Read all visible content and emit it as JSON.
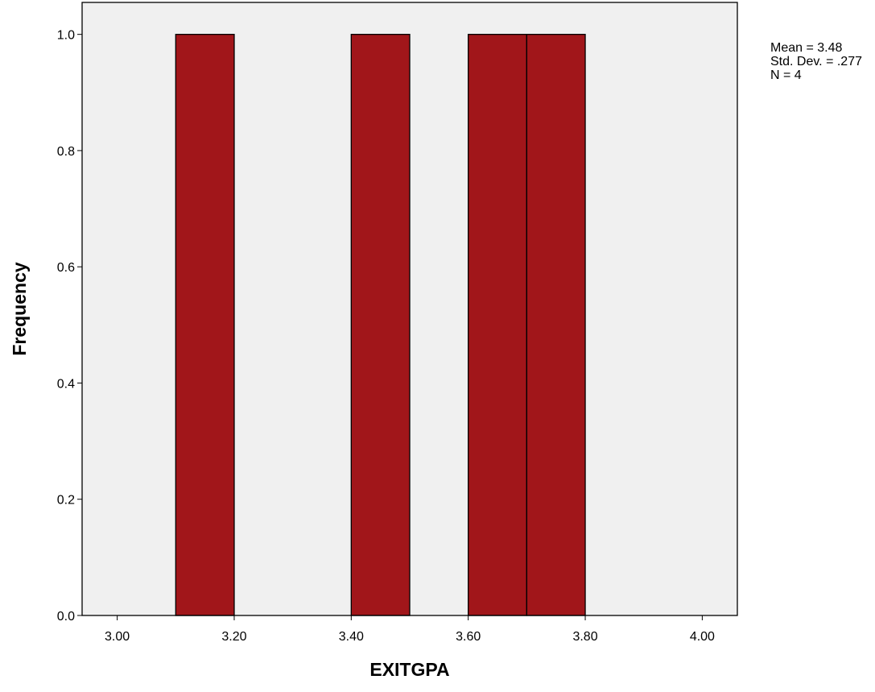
{
  "chart_data": {
    "type": "bar",
    "title": "",
    "xlabel": "EXITGPA",
    "ylabel": "Frequency",
    "xlim": [
      2.94,
      4.06
    ],
    "ylim": [
      0.0,
      1.055
    ],
    "x_ticks": [
      {
        "value": 3.0,
        "label": "3.00"
      },
      {
        "value": 3.2,
        "label": "3.20"
      },
      {
        "value": 3.4,
        "label": "3.40"
      },
      {
        "value": 3.6,
        "label": "3.60"
      },
      {
        "value": 3.8,
        "label": "3.80"
      },
      {
        "value": 4.0,
        "label": "4.00"
      }
    ],
    "y_ticks": [
      {
        "value": 0.0,
        "label": "0.0"
      },
      {
        "value": 0.2,
        "label": "0.2"
      },
      {
        "value": 0.4,
        "label": "0.4"
      },
      {
        "value": 0.6,
        "label": "0.6"
      },
      {
        "value": 0.8,
        "label": "0.8"
      },
      {
        "value": 1.0,
        "label": "1.0"
      }
    ],
    "bins": [
      {
        "start": 3.1,
        "end": 3.2,
        "frequency": 1
      },
      {
        "start": 3.4,
        "end": 3.5,
        "frequency": 1
      },
      {
        "start": 3.6,
        "end": 3.7,
        "frequency": 1
      },
      {
        "start": 3.7,
        "end": 3.8,
        "frequency": 1
      }
    ],
    "statistics": [
      "Mean = 3.48",
      "Std. Dev. = .277",
      "N = 4"
    ],
    "grid": false,
    "legend": "none",
    "colors": {
      "bar_fill": "#A1161A",
      "bar_stroke": "#000000",
      "plot_background": "#F0F0F0",
      "frame": "#000000"
    }
  }
}
